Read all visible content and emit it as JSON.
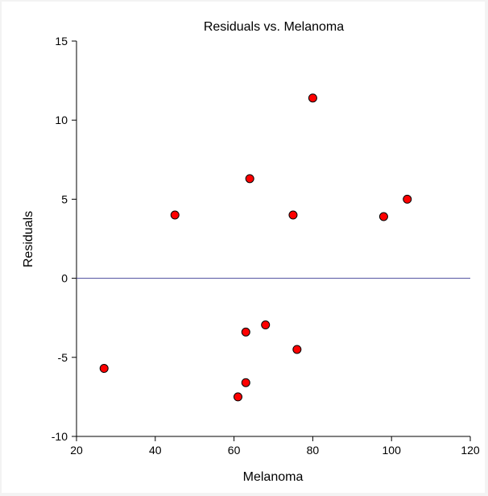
{
  "chart_data": {
    "type": "scatter",
    "title": "Residuals vs. Melanoma",
    "xlabel": "Melanoma",
    "ylabel": "Residuals",
    "xlim": [
      20,
      120
    ],
    "ylim": [
      -10,
      15
    ],
    "xticks": [
      20,
      40,
      60,
      80,
      100,
      120
    ],
    "yticks": [
      -10,
      -5,
      0,
      5,
      10,
      15
    ],
    "reference_line_y": 0,
    "grid": false,
    "point_color": "#ff0000",
    "reference_line_color": "#4a4a9c",
    "points": [
      {
        "x": 27,
        "y": -5.7
      },
      {
        "x": 45,
        "y": 4.0
      },
      {
        "x": 61,
        "y": -7.5
      },
      {
        "x": 63,
        "y": -3.4
      },
      {
        "x": 63,
        "y": -6.6
      },
      {
        "x": 64,
        "y": 6.3
      },
      {
        "x": 68,
        "y": -2.95
      },
      {
        "x": 75,
        "y": 4.0
      },
      {
        "x": 76,
        "y": -4.5
      },
      {
        "x": 80,
        "y": 11.4
      },
      {
        "x": 98,
        "y": 3.9
      },
      {
        "x": 104,
        "y": 5.0
      }
    ]
  }
}
